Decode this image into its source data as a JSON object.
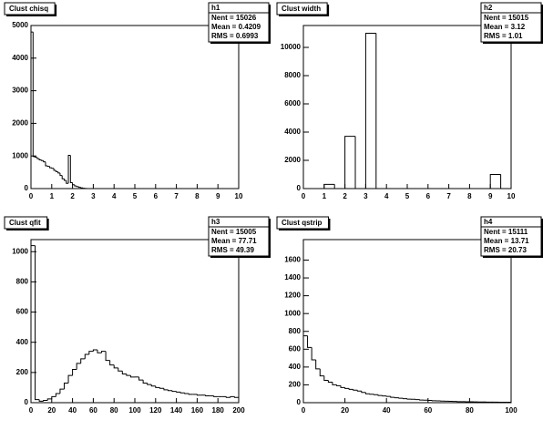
{
  "chart_data": [
    {
      "type": "histogram",
      "title": "Clust chisq",
      "stats": {
        "name": "h1",
        "lines": [
          "Nent = 15026",
          "Mean = 0.4209",
          "RMS = 0.6993"
        ]
      },
      "bins": [
        0,
        0.1,
        0.2,
        0.3,
        0.4,
        0.5,
        0.6,
        0.7,
        0.8,
        0.9,
        1,
        1.1,
        1.2,
        1.3,
        1.4,
        1.5,
        1.6,
        1.7,
        1.8,
        1.9,
        2,
        2.1,
        2.2,
        2.3,
        2.4,
        2.5,
        2.6,
        2.7,
        2.8,
        2.9,
        3
      ],
      "values": [
        4800,
        980,
        960,
        920,
        880,
        860,
        820,
        700,
        680,
        640,
        620,
        560,
        520,
        480,
        400,
        300,
        250,
        160,
        1020,
        180,
        120,
        80,
        60,
        40,
        20,
        10,
        5,
        0,
        0,
        0
      ],
      "color": "#000000",
      "xlim": [
        0,
        10
      ],
      "xticks": [
        0,
        1,
        2,
        3,
        4,
        5,
        6,
        7,
        8,
        9,
        10
      ],
      "ylim": [
        0,
        5000
      ],
      "yticks": [
        0,
        1000,
        2000,
        3000,
        4000,
        5000
      ]
    },
    {
      "type": "histogram",
      "title": "Clust width",
      "stats": {
        "name": "h2",
        "lines": [
          "Nent = 15015",
          "Mean = 3.12",
          "RMS = 1.01"
        ]
      },
      "bins": [
        0,
        0.5,
        1,
        1.5,
        2,
        2.5,
        3,
        3.5,
        4,
        4.5,
        5,
        5.5,
        6,
        6.5,
        7,
        7.5,
        8,
        8.5,
        9,
        9.5,
        10
      ],
      "values": [
        0,
        0,
        300,
        0,
        3700,
        0,
        11000,
        0,
        0,
        0,
        0,
        0,
        0,
        0,
        0,
        0,
        0,
        0,
        1000,
        0
      ],
      "color": "#000000",
      "xlim": [
        0,
        10
      ],
      "xticks": [
        0,
        1,
        2,
        3,
        4,
        5,
        6,
        7,
        8,
        9,
        10
      ],
      "ylim": [
        0,
        11550
      ],
      "yticks": [
        0,
        2000,
        4000,
        6000,
        8000,
        10000
      ]
    },
    {
      "type": "histogram",
      "title": "Clust qfit",
      "stats": {
        "name": "h3",
        "lines": [
          "Nent = 15005",
          "Mean = 77.71",
          "RMS = 49.39"
        ]
      },
      "bins": [
        0,
        4,
        8,
        12,
        16,
        20,
        24,
        28,
        32,
        36,
        40,
        44,
        48,
        52,
        56,
        60,
        64,
        68,
        72,
        76,
        80,
        84,
        88,
        92,
        96,
        100,
        104,
        108,
        112,
        116,
        120,
        124,
        128,
        132,
        136,
        140,
        144,
        148,
        152,
        156,
        160,
        164,
        168,
        172,
        176,
        180,
        184,
        188,
        192,
        196,
        200
      ],
      "values": [
        1040,
        20,
        10,
        15,
        25,
        40,
        60,
        90,
        130,
        180,
        220,
        260,
        290,
        320,
        340,
        350,
        330,
        340,
        280,
        250,
        230,
        210,
        190,
        180,
        170,
        170,
        150,
        130,
        120,
        110,
        100,
        95,
        85,
        80,
        75,
        70,
        65,
        60,
        55,
        55,
        50,
        50,
        45,
        45,
        40,
        40,
        40,
        35,
        40,
        35
      ],
      "color": "#000000",
      "xlim": [
        0,
        200
      ],
      "xticks": [
        0,
        20,
        40,
        60,
        80,
        100,
        120,
        140,
        160,
        180,
        200
      ],
      "ylim": [
        0,
        1080
      ],
      "yticks": [
        0,
        200,
        400,
        600,
        800,
        1000
      ]
    },
    {
      "type": "histogram",
      "title": "Clust qstrip",
      "stats": {
        "name": "h4",
        "lines": [
          "Nent = 15111",
          "Mean = 13.71",
          "RMS = 20.73"
        ]
      },
      "bins": [
        0,
        2,
        4,
        6,
        8,
        10,
        12,
        14,
        16,
        18,
        20,
        22,
        24,
        26,
        28,
        30,
        32,
        34,
        36,
        38,
        40,
        42,
        44,
        46,
        48,
        50,
        52,
        54,
        56,
        58,
        60,
        62,
        64,
        66,
        68,
        70,
        72,
        74,
        76,
        78,
        80,
        82,
        84,
        86,
        88,
        90,
        92,
        94,
        96,
        98,
        100
      ],
      "values": [
        750,
        620,
        480,
        380,
        300,
        250,
        230,
        200,
        190,
        170,
        160,
        150,
        140,
        130,
        115,
        100,
        95,
        90,
        80,
        75,
        70,
        60,
        55,
        50,
        45,
        40,
        38,
        35,
        30,
        28,
        25,
        22,
        20,
        18,
        16,
        15,
        14,
        12,
        11,
        10,
        10,
        9,
        8,
        8,
        7,
        6,
        6,
        5,
        5,
        5
      ],
      "color": "#000000",
      "xlim": [
        0,
        100
      ],
      "xticks": [
        0,
        20,
        40,
        60,
        80,
        100
      ],
      "ylim": [
        0,
        1830
      ],
      "yticks": [
        0,
        200,
        400,
        600,
        800,
        1000,
        1200,
        1400,
        1600
      ]
    }
  ]
}
